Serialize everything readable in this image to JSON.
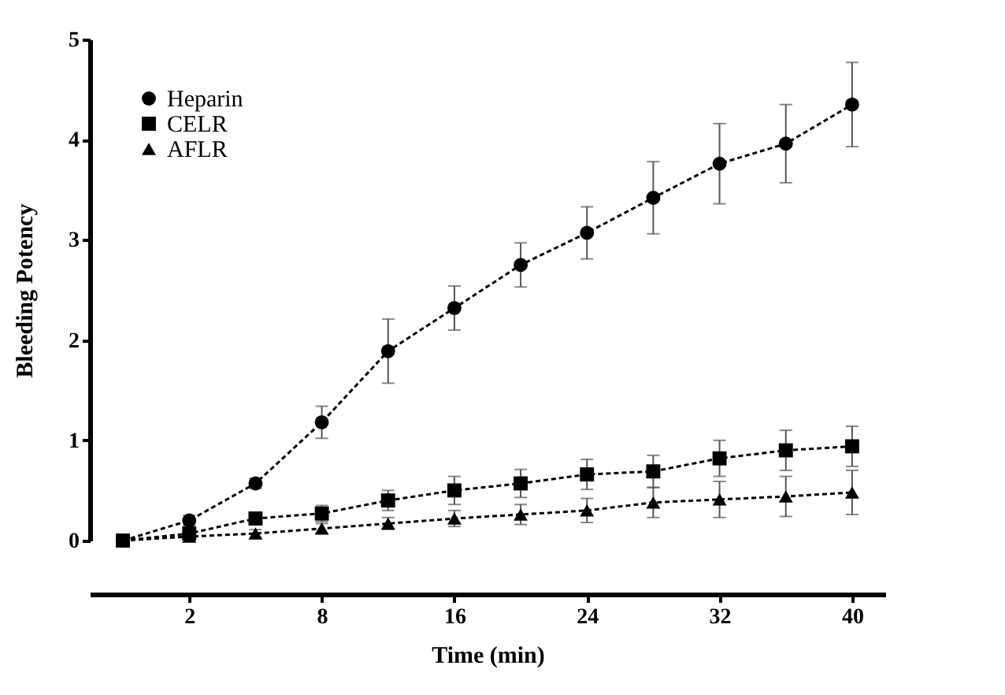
{
  "chart_data": {
    "type": "line",
    "xlabel": "Time (min)",
    "ylabel": "Bleeding Potency",
    "categories": [
      null,
      "2",
      null,
      "8",
      null,
      "16",
      null,
      "24",
      null,
      "32",
      null,
      "40"
    ],
    "ylim": [
      0,
      5
    ],
    "yticks": [
      0,
      1,
      2,
      3,
      4,
      5
    ],
    "grid": false,
    "legend": "top left",
    "line_style": "dashed",
    "series": [
      {
        "name": "Heparin",
        "color": "#000000",
        "marker": "circle",
        "values": [
          0,
          0.2,
          0.57,
          1.18,
          1.89,
          2.32,
          2.75,
          3.07,
          3.42,
          3.76,
          3.96,
          4.35
        ],
        "errors": [
          null,
          0.05,
          0.05,
          0.16,
          0.32,
          0.22,
          0.22,
          0.26,
          0.36,
          0.4,
          0.39,
          0.42
        ]
      },
      {
        "name": "CELR",
        "color": "#000000",
        "marker": "square",
        "values": [
          0,
          0.07,
          0.22,
          0.27,
          0.4,
          0.5,
          0.57,
          0.66,
          0.69,
          0.82,
          0.9,
          0.94
        ],
        "errors": [
          null,
          0.04,
          0.06,
          0.08,
          0.1,
          0.14,
          0.14,
          0.15,
          0.16,
          0.18,
          0.2,
          0.2
        ]
      },
      {
        "name": "AFLR",
        "color": "#000000",
        "marker": "triangle",
        "values": [
          0,
          0.04,
          0.07,
          0.12,
          0.17,
          0.22,
          0.26,
          0.3,
          0.38,
          0.41,
          0.44,
          0.48
        ],
        "errors": [
          null,
          0.03,
          0.04,
          0.05,
          0.06,
          0.08,
          0.1,
          0.12,
          0.15,
          0.18,
          0.2,
          0.22
        ]
      }
    ]
  }
}
